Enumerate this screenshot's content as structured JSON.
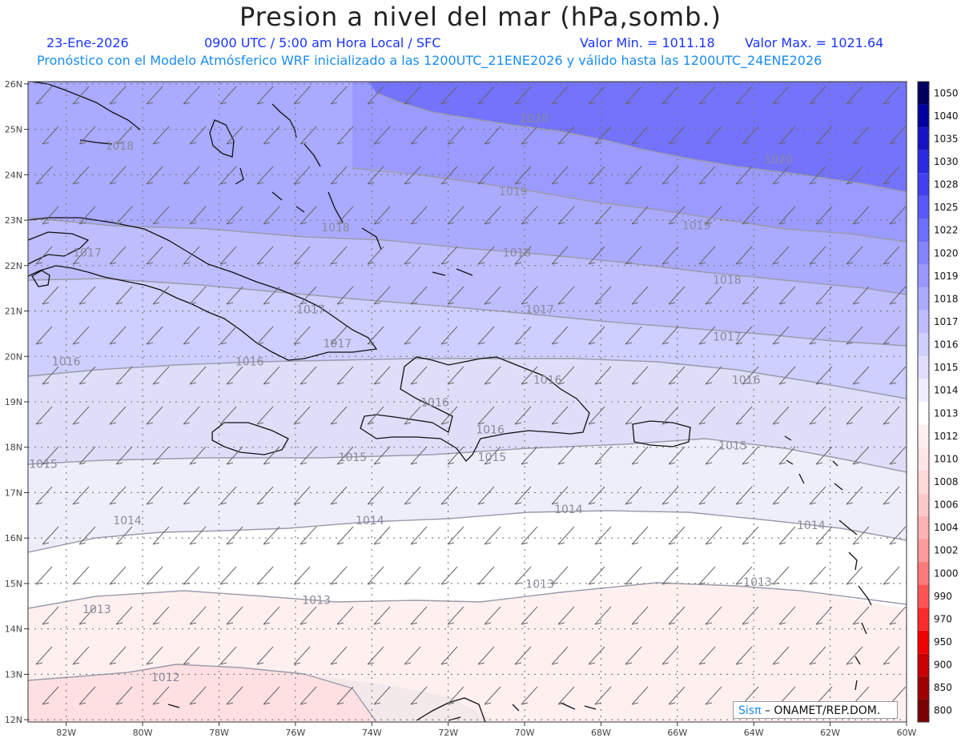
{
  "header": {
    "title": "Presion a nivel del mar (hPa,somb.)",
    "date": "23-Ene-2026",
    "time": "0900 UTC / 5:00 am Hora Local / SFC",
    "vmin": "Valor Min. = 1011.18",
    "vmax": "Valor Max. = 1021.64",
    "model_line": "Pronóstico con el Modelo Atmósferico WRF inicializado a las 1200UTC_21ENE2026 y válido hasta las  1200UTC_24ENE2026"
  },
  "map": {
    "lon_labels": [
      "82W",
      "80W",
      "78W",
      "76W",
      "74W",
      "72W",
      "70W",
      "68W",
      "66W",
      "64W",
      "62W",
      "60W"
    ],
    "lat_labels": [
      "26N",
      "25N",
      "24N",
      "23N",
      "22N",
      "21N",
      "20N",
      "19N",
      "18N",
      "17N",
      "16N",
      "15N",
      "14N",
      "13N",
      "12N"
    ],
    "isobar_labels": [
      {
        "text": "1020",
        "lon": -69.75,
        "lat": 25.15
      },
      {
        "text": "1020",
        "lon": -63.35,
        "lat": 24.25
      },
      {
        "text": "1019",
        "lon": -70.3,
        "lat": 23.55
      },
      {
        "text": "1019",
        "lon": -65.5,
        "lat": 22.8
      },
      {
        "text": "1018",
        "lon": -80.6,
        "lat": 24.55
      },
      {
        "text": "1018",
        "lon": -74.95,
        "lat": 22.75
      },
      {
        "text": "1018",
        "lon": -70.2,
        "lat": 22.2
      },
      {
        "text": "1018",
        "lon": -64.7,
        "lat": 21.6
      },
      {
        "text": "1017",
        "lon": -81.45,
        "lat": 22.2
      },
      {
        "text": "1017",
        "lon": -75.6,
        "lat": 20.95
      },
      {
        "text": "1017",
        "lon": -69.6,
        "lat": 20.95
      },
      {
        "text": "1017",
        "lon": -74.9,
        "lat": 20.2
      },
      {
        "text": "1017",
        "lon": -64.7,
        "lat": 20.35
      },
      {
        "text": "1016",
        "lon": -82.0,
        "lat": 19.8
      },
      {
        "text": "1016",
        "lon": -77.2,
        "lat": 19.8
      },
      {
        "text": "1016",
        "lon": -72.35,
        "lat": 18.9
      },
      {
        "text": "1016",
        "lon": -69.4,
        "lat": 19.4
      },
      {
        "text": "1016",
        "lon": -64.2,
        "lat": 19.4
      },
      {
        "text": "1016",
        "lon": -70.9,
        "lat": 18.3
      },
      {
        "text": "1015",
        "lon": -82.6,
        "lat": 17.55
      },
      {
        "text": "1015",
        "lon": -74.5,
        "lat": 17.7
      },
      {
        "text": "1015",
        "lon": -70.85,
        "lat": 17.7
      },
      {
        "text": "1015",
        "lon": -64.55,
        "lat": 17.95
      },
      {
        "text": "1014",
        "lon": -80.4,
        "lat": 16.3
      },
      {
        "text": "1014",
        "lon": -74.05,
        "lat": 16.3
      },
      {
        "text": "1014",
        "lon": -68.85,
        "lat": 16.55
      },
      {
        "text": "1014",
        "lon": -62.5,
        "lat": 16.2
      },
      {
        "text": "1013",
        "lon": -69.6,
        "lat": 14.9
      },
      {
        "text": "1013",
        "lon": -63.9,
        "lat": 14.95
      },
      {
        "text": "1013",
        "lon": -75.45,
        "lat": 14.55
      },
      {
        "text": "1013",
        "lon": -81.2,
        "lat": 14.35
      },
      {
        "text": "1012",
        "lon": -79.4,
        "lat": 12.85
      }
    ]
  },
  "colorbar": {
    "levels": [
      "800",
      "850",
      "900",
      "950",
      "970",
      "990",
      "1000",
      "1002",
      "1004",
      "1006",
      "1008",
      "1010",
      "1012",
      "1013",
      "1014",
      "1015",
      "1016",
      "1017",
      "1018",
      "1019",
      "1020",
      "1022",
      "1025",
      "1028",
      "1030",
      "1035",
      "1040",
      "1050"
    ],
    "colors": [
      "#7a0000",
      "#a00000",
      "#c80000",
      "#f00000",
      "#ff2a2a",
      "#ff5454",
      "#ff7a7a",
      "#ff9a9a",
      "#ffb2b2",
      "#ffc8c8",
      "#ffd8d8",
      "#ffe6e6",
      "#fff0f0",
      "#ffffff",
      "#eeeeff",
      "#dedefc",
      "#ceceff",
      "#bcbcff",
      "#aaaaff",
      "#9898ff",
      "#8484ff",
      "#6e6efd",
      "#5858fb",
      "#4040f0",
      "#2a2ae0",
      "#1414c4",
      "#0000a0",
      "#000060"
    ]
  },
  "credit": {
    "brand": "Sisπ",
    "separator": " – ",
    "org": "ONAMET/REP.DOM."
  }
}
